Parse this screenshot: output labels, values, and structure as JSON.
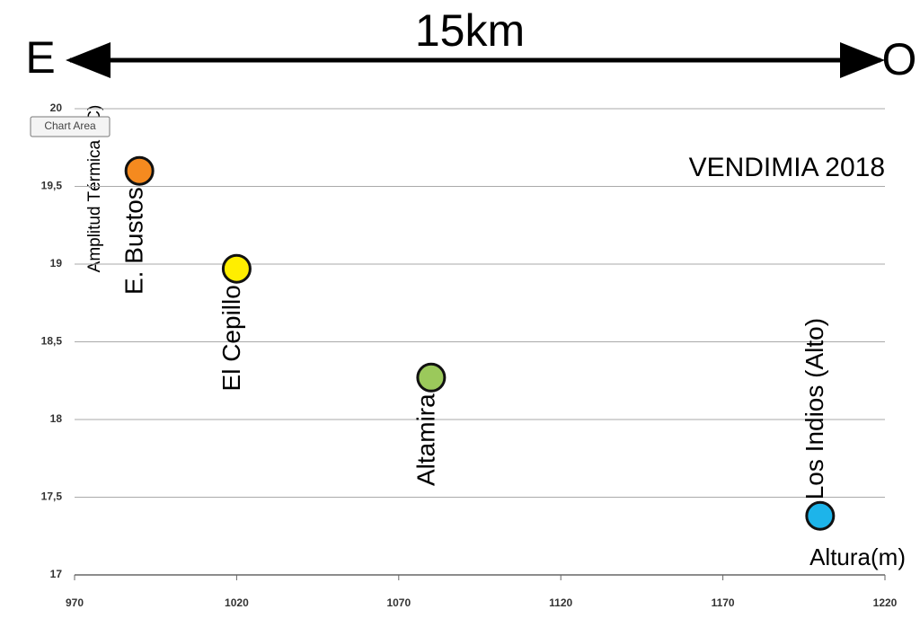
{
  "chart_data": {
    "type": "scatter",
    "title": "VENDIMIA 2018",
    "distance_label": "15km",
    "left_label": "E",
    "right_label": "O",
    "x_label": "Altura(m)",
    "y_label": "Amplitud Térmica (°C)",
    "tooltip": "Chart Area",
    "x": [
      990,
      1020,
      1080,
      1200
    ],
    "values": [
      19.6,
      18.97,
      18.27,
      17.38
    ],
    "labels": [
      "E. Bustos",
      "El Cepillo",
      "Altamira",
      "Los Indios (Alto)"
    ],
    "colors": [
      "#f58a1f",
      "#ffee00",
      "#9bc95b",
      "#1db4ea"
    ],
    "xlim": [
      970,
      1220
    ],
    "xticks": [
      970,
      1020,
      1070,
      1120,
      1170,
      1220
    ],
    "ylim": [
      17,
      20
    ],
    "yticks": [
      17,
      {
        "value": 17.5,
        "label": "17,5"
      },
      18,
      {
        "value": 18.5,
        "label": "18,5"
      },
      19,
      {
        "value": 19.5,
        "label": "19,5"
      },
      20
    ],
    "grid": true
  }
}
